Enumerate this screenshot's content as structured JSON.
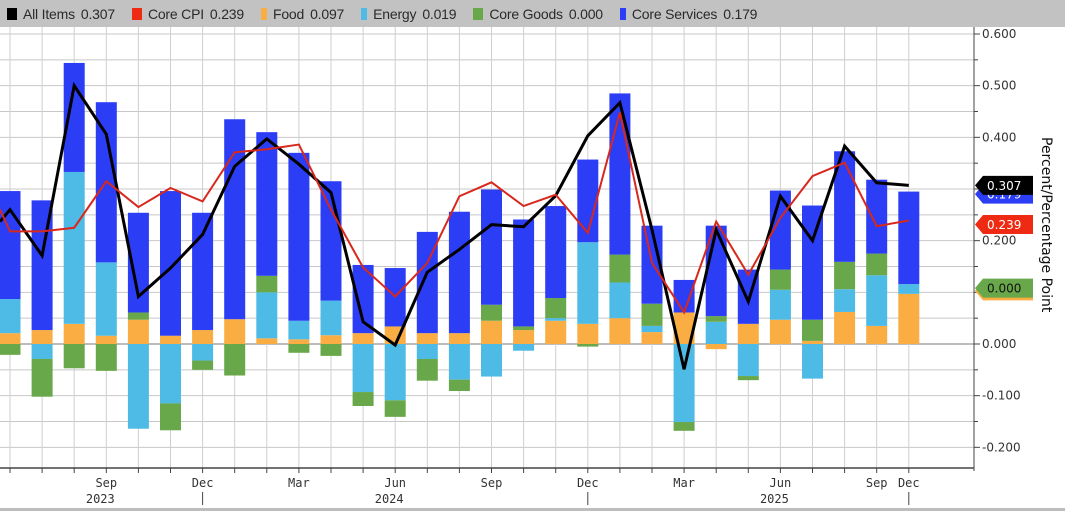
{
  "legend": {
    "items": [
      {
        "name": "All Items",
        "value": "0.307",
        "color": "#000000",
        "swatch": "square"
      },
      {
        "name": "Core CPI",
        "value": "0.239",
        "color": "#ee2a12",
        "swatch": "square"
      },
      {
        "name": "Food",
        "value": "0.097",
        "color": "#f9ad43",
        "swatch": "thin"
      },
      {
        "name": "Energy",
        "value": "0.019",
        "color": "#4dbbe6",
        "swatch": "thin"
      },
      {
        "name": "Core Goods",
        "value": "0.000",
        "color": "#69a84a",
        "swatch": "square"
      },
      {
        "name": "Core Services",
        "value": "0.179",
        "color": "#2b3df5",
        "swatch": "thin"
      }
    ]
  },
  "chart_data": {
    "type": "bar",
    "subtype": "stacked bar with line overlays",
    "title": "",
    "ylabel": "Percent/Percentage Point",
    "xlabel": "",
    "ylim": [
      -0.2,
      0.6
    ],
    "yticks": [
      "0.600",
      "0.500",
      "0.400",
      "0.300",
      "0.200",
      "0.100",
      "0.000",
      "-0.100",
      "-0.200"
    ],
    "yticks_labeled": [
      "0.600",
      "0.500",
      "0.400",
      "0.200",
      "0.000",
      "-0.100",
      "-0.200"
    ],
    "y_axis_side": "right",
    "grid": true,
    "legend_position": "top",
    "categories": [
      "Jun 2023",
      "Jul 2023",
      "Aug 2023",
      "Sep 2023",
      "Oct 2023",
      "Nov 2023",
      "Dec 2023",
      "Jan 2024",
      "Feb 2024",
      "Mar 2024",
      "Apr 2024",
      "May 2024",
      "Jun 2024",
      "Jul 2024",
      "Aug 2024",
      "Sep 2024",
      "Oct 2024",
      "Nov 2024",
      "Dec 2024",
      "Jan 2025",
      "Feb 2025",
      "Mar 2025",
      "Apr 2025",
      "May 2025",
      "Jun 2025",
      "Jul 2025",
      "Aug 2025",
      "Sep 2025",
      "Dec 2025"
    ],
    "x_tick_labels": [
      {
        "category": "Sep 2023",
        "month": "Sep",
        "year": "2023"
      },
      {
        "category": "Dec 2023",
        "month": "Dec",
        "year": ""
      },
      {
        "category": "Mar 2024",
        "month": "Mar",
        "year": ""
      },
      {
        "category": "Jun 2024",
        "month": "Jun",
        "year": "2024"
      },
      {
        "category": "Sep 2024",
        "month": "Sep",
        "year": ""
      },
      {
        "category": "Dec 2024",
        "month": "Dec",
        "year": ""
      },
      {
        "category": "Mar 2025",
        "month": "Mar",
        "year": ""
      },
      {
        "category": "Jun 2025",
        "month": "Jun",
        "year": "2025"
      },
      {
        "category": "Sep 2025",
        "month": "Sep",
        "year": ""
      },
      {
        "category": "Dec 2025",
        "month": "Dec",
        "year": ""
      }
    ],
    "year_separators": [
      "Dec 2023",
      "Dec 2024",
      "Dec 2025"
    ],
    "bar_series": [
      {
        "name": "Food",
        "color": "#f9ad43",
        "values": [
          0.021,
          0.027,
          0.039,
          0.016,
          0.047,
          0.016,
          0.027,
          0.048,
          0.011,
          0.009,
          0.017,
          0.021,
          0.034,
          0.021,
          0.021,
          0.045,
          0.027,
          0.045,
          0.039,
          0.05,
          0.023,
          0.061,
          -0.01,
          0.039,
          0.047,
          0.006,
          0.062,
          0.035,
          0.097
        ]
      },
      {
        "name": "Energy",
        "color": "#4dbbe6",
        "values": [
          0.066,
          -0.029,
          0.294,
          0.142,
          -0.164,
          -0.115,
          -0.032,
          0.0,
          0.089,
          0.036,
          0.067,
          -0.093,
          -0.109,
          -0.029,
          -0.069,
          -0.063,
          -0.013,
          0.005,
          0.158,
          0.069,
          0.012,
          -0.151,
          0.043,
          -0.062,
          0.058,
          -0.067,
          0.044,
          0.098,
          0.019
        ]
      },
      {
        "name": "Core Goods",
        "color": "#69a84a",
        "values": [
          -0.021,
          -0.073,
          -0.047,
          -0.052,
          0.014,
          -0.052,
          -0.018,
          -0.061,
          0.032,
          -0.017,
          -0.023,
          -0.027,
          -0.032,
          -0.042,
          -0.022,
          0.031,
          0.007,
          0.039,
          -0.005,
          0.054,
          0.043,
          -0.017,
          0.011,
          -0.008,
          0.039,
          0.041,
          0.053,
          0.042,
          0.0
        ]
      },
      {
        "name": "Core Services",
        "color": "#2b3df5",
        "values": [
          0.209,
          0.251,
          0.211,
          0.31,
          0.193,
          0.28,
          0.227,
          0.387,
          0.278,
          0.325,
          0.231,
          0.132,
          0.113,
          0.196,
          0.235,
          0.223,
          0.207,
          0.178,
          0.16,
          0.312,
          0.151,
          0.063,
          0.175,
          0.105,
          0.153,
          0.221,
          0.214,
          0.143,
          0.179
        ]
      }
    ],
    "line_series": [
      {
        "name": "All Items",
        "color": "#000000",
        "clipped_previous_value": 0.237,
        "values": [
          0.26,
          0.171,
          0.5,
          0.406,
          0.092,
          0.147,
          0.212,
          0.344,
          0.397,
          0.348,
          0.293,
          0.043,
          -0.002,
          0.139,
          0.183,
          0.231,
          0.227,
          0.287,
          0.403,
          0.467,
          0.221,
          -0.049,
          0.221,
          0.082,
          0.286,
          0.2,
          0.383,
          0.312,
          0.307
        ]
      },
      {
        "name": "Core CPI",
        "color": "#d8281c",
        "clipped_previous_value": 0.26,
        "values": [
          0.218,
          0.218,
          0.225,
          0.315,
          0.265,
          0.302,
          0.276,
          0.371,
          0.377,
          0.386,
          0.26,
          0.148,
          0.092,
          0.157,
          0.286,
          0.313,
          0.267,
          0.289,
          0.215,
          0.448,
          0.157,
          0.061,
          0.237,
          0.134,
          0.244,
          0.325,
          0.351,
          0.228,
          0.239
        ]
      }
    ],
    "value_badges": [
      {
        "series": "All Items",
        "text": "0.307",
        "bg": "#000000",
        "fg": "#ffffff",
        "value": 0.307
      },
      {
        "series": "Core Services",
        "text": "0.179",
        "bg": "#2b3df5",
        "fg": "#ffffff",
        "value": 0.296,
        "hidden_behind": "All Items"
      },
      {
        "series": "Core CPI",
        "text": "0.239",
        "bg": "#ee2a12",
        "fg": "#ffffff",
        "value": 0.239
      },
      {
        "series": "Food",
        "text": "0.097",
        "bg": "#f9ad43",
        "fg": "#222222",
        "value": 0.097
      },
      {
        "series": "Core Goods",
        "text": "0.000",
        "bg": "#69a84a",
        "fg": "#111111",
        "value": 0.116
      }
    ]
  }
}
